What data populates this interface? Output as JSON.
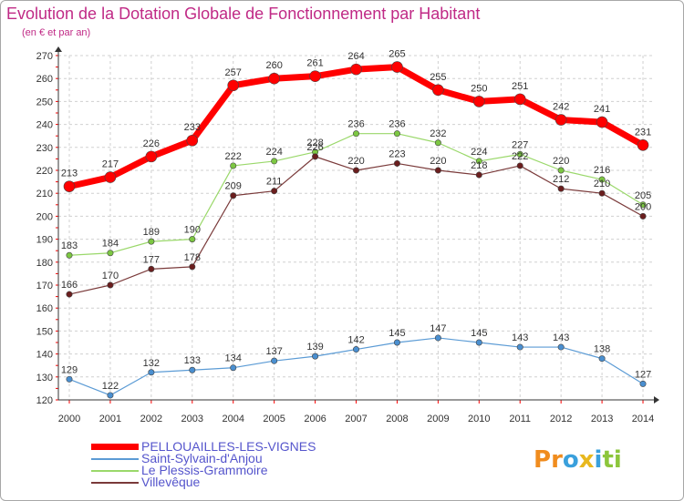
{
  "header": {
    "title": "Evolution de la Dotation Globale de Fonctionnement par Habitant",
    "subtitle": "(en € et par an)"
  },
  "logo": {
    "text": "Proxiti",
    "letters": [
      "P",
      "r",
      "o",
      "x",
      "i",
      "t",
      "i"
    ],
    "colors": [
      "#f08c1e",
      "#f08c1e",
      "#3aa0dc",
      "#e8b81e",
      "#3aa0dc",
      "#8cc63c",
      "#8cc63c"
    ]
  },
  "colors": {
    "accent": "#c02a86",
    "axis_red": "#ff0000",
    "grid": "#d0d0d0",
    "legend_text": "#5555cc"
  },
  "chart_data": {
    "type": "line",
    "title": "Evolution de la Dotation Globale de Fonctionnement par Habitant",
    "subtitle": "(en € et par an)",
    "xlabel": "",
    "ylabel": "",
    "x": [
      2000,
      2001,
      2002,
      2003,
      2004,
      2005,
      2006,
      2007,
      2008,
      2009,
      2010,
      2011,
      2012,
      2013,
      2014
    ],
    "ylim": [
      120,
      270
    ],
    "yticks": [
      120,
      130,
      140,
      150,
      160,
      170,
      180,
      190,
      200,
      210,
      220,
      230,
      240,
      250,
      260,
      270
    ],
    "grid": true,
    "legend_position": "bottom-left",
    "series": [
      {
        "name": "PELLOUAILLES-LES-VIGNES",
        "color": "#ff0000",
        "marker": "#ff0000",
        "width": 7,
        "radius": 6,
        "values": [
          213,
          217,
          226,
          233,
          257,
          260,
          261,
          264,
          265,
          255,
          250,
          251,
          242,
          241,
          231
        ]
      },
      {
        "name": "Saint-Sylvain-d'Anjou",
        "color": "#5b9bd5",
        "marker": "#4a8fd0",
        "width": 1.2,
        "radius": 3.2,
        "values": [
          129,
          122,
          132,
          133,
          134,
          137,
          139,
          142,
          145,
          147,
          145,
          143,
          143,
          138,
          127
        ]
      },
      {
        "name": "Le Plessis-Grammoire",
        "color": "#9ad86a",
        "marker": "#7cc742",
        "width": 1.2,
        "radius": 3.2,
        "values": [
          183,
          184,
          189,
          190,
          222,
          224,
          228,
          236,
          236,
          232,
          224,
          227,
          220,
          216,
          205
        ]
      },
      {
        "name": "Villevêque",
        "color": "#7a3a3a",
        "marker": "#6b1e1e",
        "width": 1.2,
        "radius": 3.2,
        "values": [
          166,
          170,
          177,
          178,
          209,
          211,
          226,
          220,
          223,
          220,
          218,
          222,
          212,
          210,
          200
        ]
      }
    ]
  }
}
